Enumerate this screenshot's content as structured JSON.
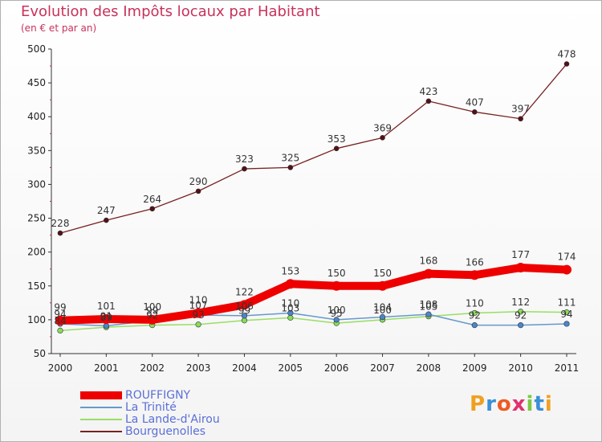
{
  "header": {
    "title": "Evolution des Impôts locaux par Habitant",
    "subtitle": "(en € et par an)"
  },
  "logo": "Proxiti",
  "chart_data": {
    "type": "line",
    "title": "Evolution des Impôts locaux par Habitant",
    "subtitle": "(en € et par an)",
    "x": [
      2000,
      2001,
      2002,
      2003,
      2004,
      2005,
      2006,
      2007,
      2008,
      2009,
      2010,
      2011
    ],
    "ylim": [
      50,
      500
    ],
    "yticks": [
      50,
      100,
      150,
      200,
      250,
      300,
      350,
      400,
      450,
      500
    ],
    "grid": false,
    "legend": "bottom-left",
    "series": [
      {
        "name": "ROUFFIGNY",
        "color": "#ee0000",
        "values": [
          99,
          101,
          100,
          110,
          122,
          153,
          150,
          150,
          168,
          166,
          177,
          174
        ]
      },
      {
        "name": "La Trinité",
        "color": "#6699cc",
        "values": [
          94,
          91,
          99,
          107,
          106,
          110,
          100,
          104,
          108,
          92,
          92,
          94
        ]
      },
      {
        "name": "La Lande-d'Airou",
        "color": "#99dd66",
        "values": [
          84,
          89,
          92,
          93,
          99,
          103,
          95,
          100,
          105,
          110,
          112,
          111
        ]
      },
      {
        "name": "Bourguenolles",
        "color": "#772222",
        "values": [
          228,
          247,
          264,
          290,
          323,
          325,
          353,
          369,
          423,
          407,
          397,
          478
        ]
      }
    ]
  }
}
